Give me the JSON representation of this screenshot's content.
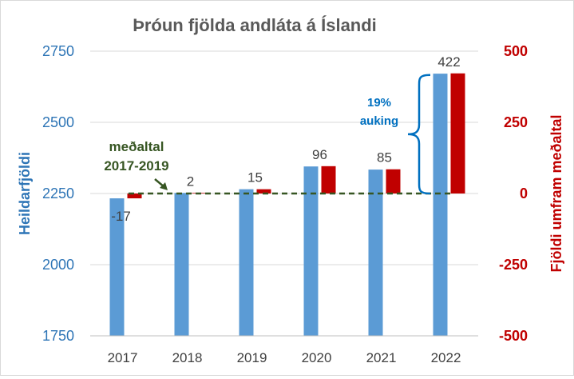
{
  "chart_data": {
    "type": "bar",
    "title": "Þróun fjölda andláta á Íslandi",
    "categories": [
      "2017",
      "2018",
      "2019",
      "2020",
      "2021",
      "2022"
    ],
    "left_axis": {
      "label": "Heildarfjöldi",
      "ylim": [
        1750,
        2750
      ],
      "ticks": [
        1750,
        2000,
        2250,
        2500,
        2750
      ],
      "color": "#2e75b6"
    },
    "right_axis": {
      "label": "Fjöldi umfram meðaltal",
      "ylim": [
        -500,
        500
      ],
      "ticks": [
        -500,
        -250,
        0,
        250,
        500
      ],
      "color": "#c00000"
    },
    "series": [
      {
        "name": "Heildarfjöldi",
        "axis": "left",
        "color": "#5b9bd5",
        "values": [
          2233,
          2252,
          2265,
          2345,
          2334,
          2671
        ]
      },
      {
        "name": "Fjöldi umfram meðaltal",
        "axis": "right",
        "color": "#c00000",
        "values": [
          -17,
          2,
          15,
          96,
          85,
          422
        ],
        "labels": [
          "-17",
          "2",
          "15",
          "96",
          "85",
          "422"
        ]
      }
    ],
    "average_line": {
      "value": 0,
      "axis": "right",
      "color": "#375623",
      "style": "dashed",
      "label_lines": [
        "meðaltal",
        "2017-2019"
      ]
    },
    "annotation": {
      "label_lines": [
        "19%",
        "auking"
      ],
      "color": "#0070c0",
      "from_value": 0,
      "to_value": 422
    },
    "grid": true,
    "legend": "none"
  }
}
